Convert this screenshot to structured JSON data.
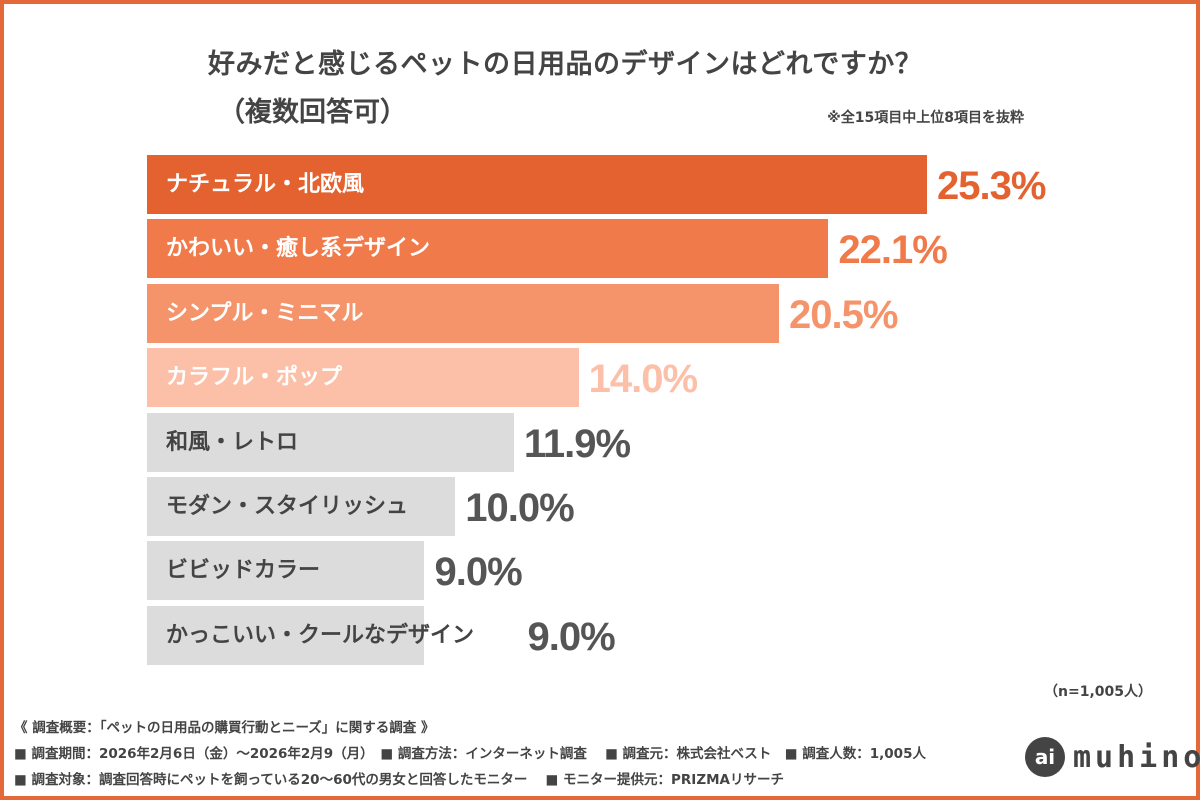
{
  "chart_data": {
    "type": "bar",
    "orientation": "horizontal",
    "title": "好みだと感じるペットの日用品のデザインはどれですか？",
    "subtitle": "（複数回答可）",
    "note": "※全15項目中上位8項目を抜粋",
    "categories": [
      "ナチュラル・北欧風",
      "かわいい・癒し系デザイン",
      "シンプル・ミニマル",
      "カラフル・ポップ",
      "和風・レトロ",
      "モダン・スタイリッシュ",
      "ビビッドカラー",
      "かっこいい・クールなデザイン"
    ],
    "values": [
      25.3,
      22.1,
      20.5,
      14.0,
      11.9,
      10.0,
      9.0,
      9.0
    ],
    "value_labels": [
      "25.3%",
      "22.1%",
      "20.5%",
      "14.0%",
      "11.9%",
      "10.0%",
      "9.0%",
      "9.0%"
    ],
    "bar_colors": [
      "#e4622f",
      "#f07a4a",
      "#f5946b",
      "#fcc0a9",
      "#dcdcdc",
      "#dcdcdc",
      "#dcdcdc",
      "#dcdcdc"
    ],
    "label_colors": [
      "#ffffff",
      "#ffffff",
      "#ffffff",
      "#ffffff",
      "#444444",
      "#444444",
      "#444444",
      "#444444"
    ],
    "value_colors": [
      "#e4622f",
      "#f07a4a",
      "#f5946b",
      "#fcc0a9",
      "#555555",
      "#555555",
      "#555555",
      "#555555"
    ],
    "xlim": [
      0,
      25.3
    ],
    "grid": false,
    "sample_size": "（n=1,005人）"
  },
  "footer": {
    "line1": "《 調査概要：「ペットの日用品の購買行動とニーズ」に関する調査 》",
    "line2": "■ 調査期間：2026年2月6日（金）〜2026年2月9（月）　■ 調査方法：インターネット調査　 ■ 調査元：株式会社ベスト　■ 調査人数：1,005人",
    "line3": "■ 調査対象：調査回答時にペットを飼っている20〜60代の男女と回答したモニター　 ■ モニター提供元：PRIZMAリサーチ"
  },
  "logo": {
    "mark": "ai",
    "text": "muhino"
  },
  "colors": {
    "border": "#e3683a",
    "text": "#444444"
  }
}
